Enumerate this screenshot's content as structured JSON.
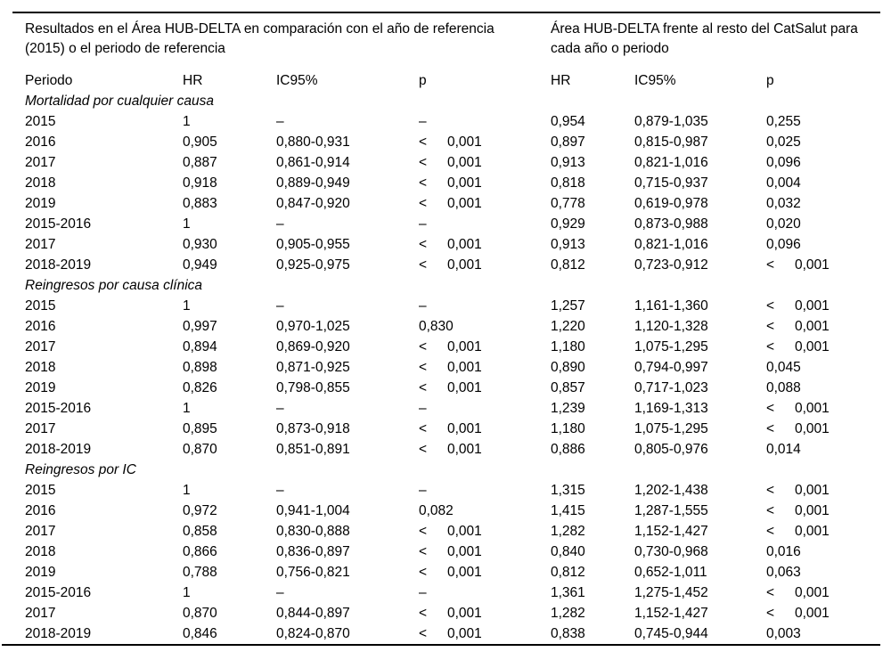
{
  "table": {
    "group_headers": {
      "left": "Resultados en el Área HUB-DELTA en comparación con el año de referencia (2015) o el periodo de referencia",
      "right": "Área HUB-DELTA frente al resto del CatSalut para cada año o periodo"
    },
    "columns": [
      "Periodo",
      "HR",
      "IC95%",
      "p",
      "HR",
      "IC95%",
      "p"
    ],
    "sections": [
      {
        "title": "Mortalidad por cualquier causa",
        "rows": [
          [
            "2015",
            "1",
            "–",
            "–",
            "0,954",
            "0,879-1,035",
            "0,255"
          ],
          [
            "2016",
            "0,905",
            "0,880-0,931",
            "< 0,001",
            "0,897",
            "0,815-0,987",
            "0,025"
          ],
          [
            "2017",
            "0,887",
            "0,861-0,914",
            "< 0,001",
            "0,913",
            "0,821-1,016",
            "0,096"
          ],
          [
            "2018",
            "0,918",
            "0,889-0,949",
            "< 0,001",
            "0,818",
            "0,715-0,937",
            "0,004"
          ],
          [
            "2019",
            "0,883",
            "0,847-0,920",
            "< 0,001",
            "0,778",
            "0,619-0,978",
            "0,032"
          ],
          [
            "2015-2016",
            "1",
            "–",
            "–",
            "0,929",
            "0,873-0,988",
            "0,020"
          ],
          [
            "2017",
            "0,930",
            "0,905-0,955",
            "< 0,001",
            "0,913",
            "0,821-1,016",
            "0,096"
          ],
          [
            "2018-2019",
            "0,949",
            "0,925-0,975",
            "< 0,001",
            "0,812",
            "0,723-0,912",
            "< 0,001"
          ]
        ]
      },
      {
        "title": "Reingresos por causa clínica",
        "rows": [
          [
            "2015",
            "1",
            "–",
            "–",
            "1,257",
            "1,161-1,360",
            "< 0,001"
          ],
          [
            "2016",
            "0,997",
            "0,970-1,025",
            "0,830",
            "1,220",
            "1,120-1,328",
            "< 0,001"
          ],
          [
            "2017",
            "0,894",
            "0,869-0,920",
            "< 0,001",
            "1,180",
            "1,075-1,295",
            "< 0,001"
          ],
          [
            "2018",
            "0,898",
            "0,871-0,925",
            "< 0,001",
            "0,890",
            "0,794-0,997",
            "0,045"
          ],
          [
            "2019",
            "0,826",
            "0,798-0,855",
            "< 0,001",
            "0,857",
            "0,717-1,023",
            "0,088"
          ],
          [
            "2015-2016",
            "1",
            "–",
            "–",
            "1,239",
            "1,169-1,313",
            "< 0,001"
          ],
          [
            "2017",
            "0,895",
            "0,873-0,918",
            "< 0,001",
            "1,180",
            "1,075-1,295",
            "< 0,001"
          ],
          [
            "2018-2019",
            "0,870",
            "0,851-0,891",
            "< 0,001",
            "0,886",
            "0,805-0,976",
            "0,014"
          ]
        ]
      },
      {
        "title": "Reingresos por IC",
        "rows": [
          [
            "2015",
            "1",
            "–",
            "–",
            "1,315",
            "1,202-1,438",
            "< 0,001"
          ],
          [
            "2016",
            "0,972",
            "0,941-1,004",
            "0,082",
            "1,415",
            "1,287-1,555",
            "< 0,001"
          ],
          [
            "2017",
            "0,858",
            "0,830-0,888",
            "< 0,001",
            "1,282",
            "1,152-1,427",
            "< 0,001"
          ],
          [
            "2018",
            "0,866",
            "0,836-0,897",
            "< 0,001",
            "0,840",
            "0,730-0,968",
            "0,016"
          ],
          [
            "2019",
            "0,788",
            "0,756-0,821",
            "< 0,001",
            "0,812",
            "0,652-1,011",
            "0,063"
          ],
          [
            "2015-2016",
            "1",
            "–",
            "–",
            "1,361",
            "1,275-1,452",
            "< 0,001"
          ],
          [
            "2017",
            "0,870",
            "0,844-0,897",
            "< 0,001",
            "1,282",
            "1,152-1,427",
            "< 0,001"
          ],
          [
            "2018-2019",
            "0,846",
            "0,824-0,870",
            "< 0,001",
            "0,838",
            "0,745-0,944",
            "0,003"
          ]
        ]
      }
    ]
  }
}
